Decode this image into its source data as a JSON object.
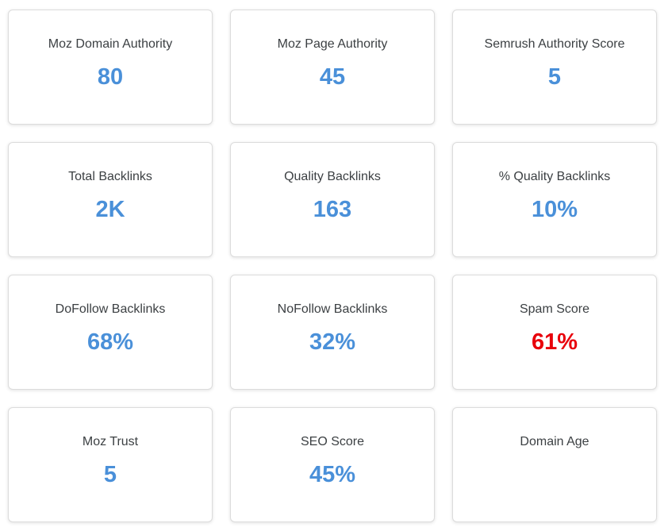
{
  "colors": {
    "value": "#4a90d9",
    "danger": "#e8000b",
    "label": "#3c4043",
    "border": "#dcdcdc"
  },
  "metrics": {
    "moz_domain_authority": {
      "label": "Moz Domain Authority",
      "value": "80"
    },
    "moz_page_authority": {
      "label": "Moz Page Authority",
      "value": "45"
    },
    "semrush_authority_score": {
      "label": "Semrush Authority Score",
      "value": "5"
    },
    "total_backlinks": {
      "label": "Total Backlinks",
      "value": "2K"
    },
    "quality_backlinks": {
      "label": "Quality Backlinks",
      "value": "163"
    },
    "pct_quality_backlinks": {
      "label": "% Quality Backlinks",
      "value": "10%"
    },
    "dofollow_backlinks": {
      "label": "DoFollow Backlinks",
      "value": "68%"
    },
    "nofollow_backlinks": {
      "label": "NoFollow Backlinks",
      "value": "32%"
    },
    "spam_score": {
      "label": "Spam Score",
      "value": "61%"
    },
    "moz_trust": {
      "label": "Moz Trust",
      "value": "5"
    },
    "seo_score": {
      "label": "SEO Score",
      "value": "45%"
    },
    "domain_age": {
      "label": "Domain Age",
      "value": ""
    }
  }
}
